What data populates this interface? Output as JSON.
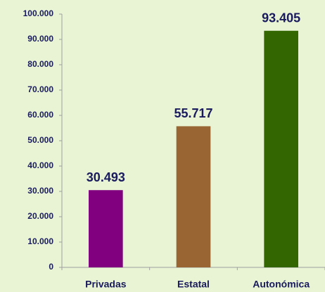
{
  "chart_data": {
    "type": "bar",
    "categories": [
      "Privadas",
      "Estatal",
      "Autonómica"
    ],
    "values": [
      30493,
      55717,
      93405
    ],
    "value_labels": [
      "30.493",
      "55.717",
      "93.405"
    ],
    "colors": [
      "#800080",
      "#996633",
      "#336600"
    ],
    "ylim": [
      0,
      100000
    ],
    "yticks": [
      0,
      {
        "value": 10000,
        "label": "10.000"
      },
      {
        "value": 20000,
        "label": "20.000"
      },
      {
        "value": 30000,
        "label": "30.000"
      },
      {
        "value": 40000,
        "label": "40.000"
      },
      {
        "value": 50000,
        "label": "50.000"
      },
      {
        "value": 60000,
        "label": "60.000"
      },
      {
        "value": 70000,
        "label": "70.000"
      },
      {
        "value": 80000,
        "label": "80.000"
      },
      {
        "value": 90000,
        "label": "90.000"
      },
      {
        "value": 100000,
        "label": "100.000"
      }
    ],
    "grid": false
  }
}
